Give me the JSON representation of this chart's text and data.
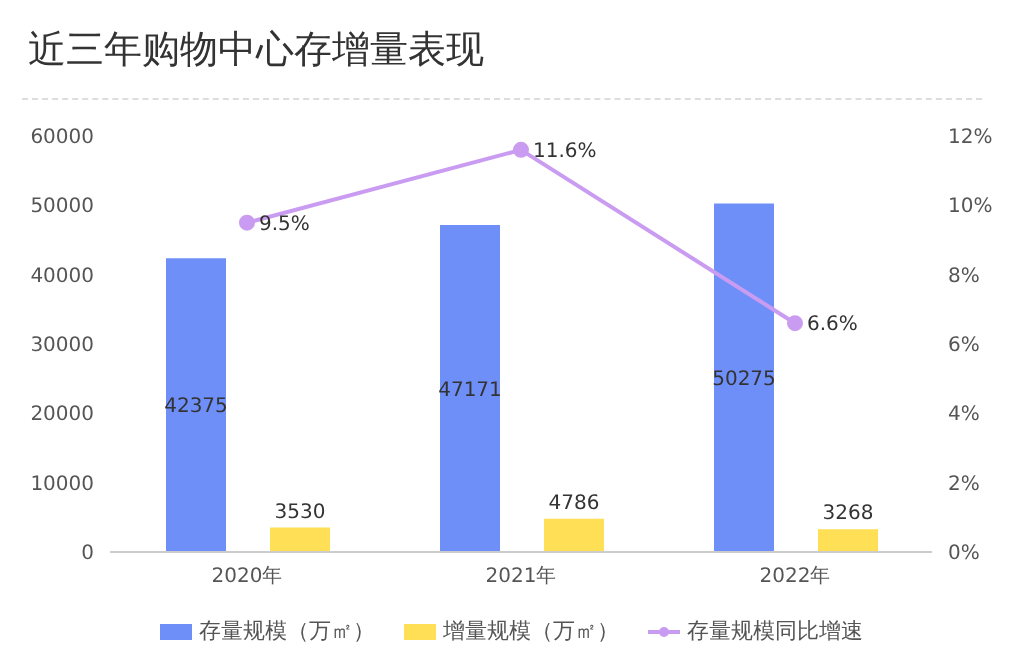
{
  "chart_data": {
    "type": "bar",
    "title": "近三年购物中心存增量表现",
    "categories": [
      "2020年",
      "2021年",
      "2022年"
    ],
    "series": [
      {
        "name": "存量规模（万㎡）",
        "color": "#6e8ff8",
        "values": [
          42375,
          47171,
          50275
        ],
        "value_labels": [
          "42375",
          "47171",
          "50275"
        ]
      },
      {
        "name": "增量规模（万㎡）",
        "color": "#fedf55",
        "values": [
          3530,
          4786,
          3268
        ],
        "value_labels": [
          "3530",
          "4786",
          "3268"
        ]
      },
      {
        "name": "存量规模同比增速",
        "type": "line",
        "axis": "y2",
        "color": "#c99cf2",
        "values": [
          9.5,
          11.6,
          6.6
        ],
        "value_labels": [
          "9.5%",
          "11.6%",
          "6.6%"
        ]
      }
    ],
    "ylim": [
      0,
      60000
    ],
    "yticks": [
      0,
      10000,
      20000,
      30000,
      40000,
      50000,
      60000
    ],
    "y2lim": [
      0,
      12
    ],
    "y2ticks": [
      {
        "value": 0,
        "label": "0%"
      },
      {
        "value": 2,
        "label": "2%"
      },
      {
        "value": 4,
        "label": "4%"
      },
      {
        "value": 6,
        "label": "6%"
      },
      {
        "value": 8,
        "label": "8%"
      },
      {
        "value": 10,
        "label": "10%"
      },
      {
        "value": 12,
        "label": "12%"
      }
    ],
    "grid": false,
    "legend": "bottom",
    "marker": "circle",
    "line_style": "solid"
  }
}
